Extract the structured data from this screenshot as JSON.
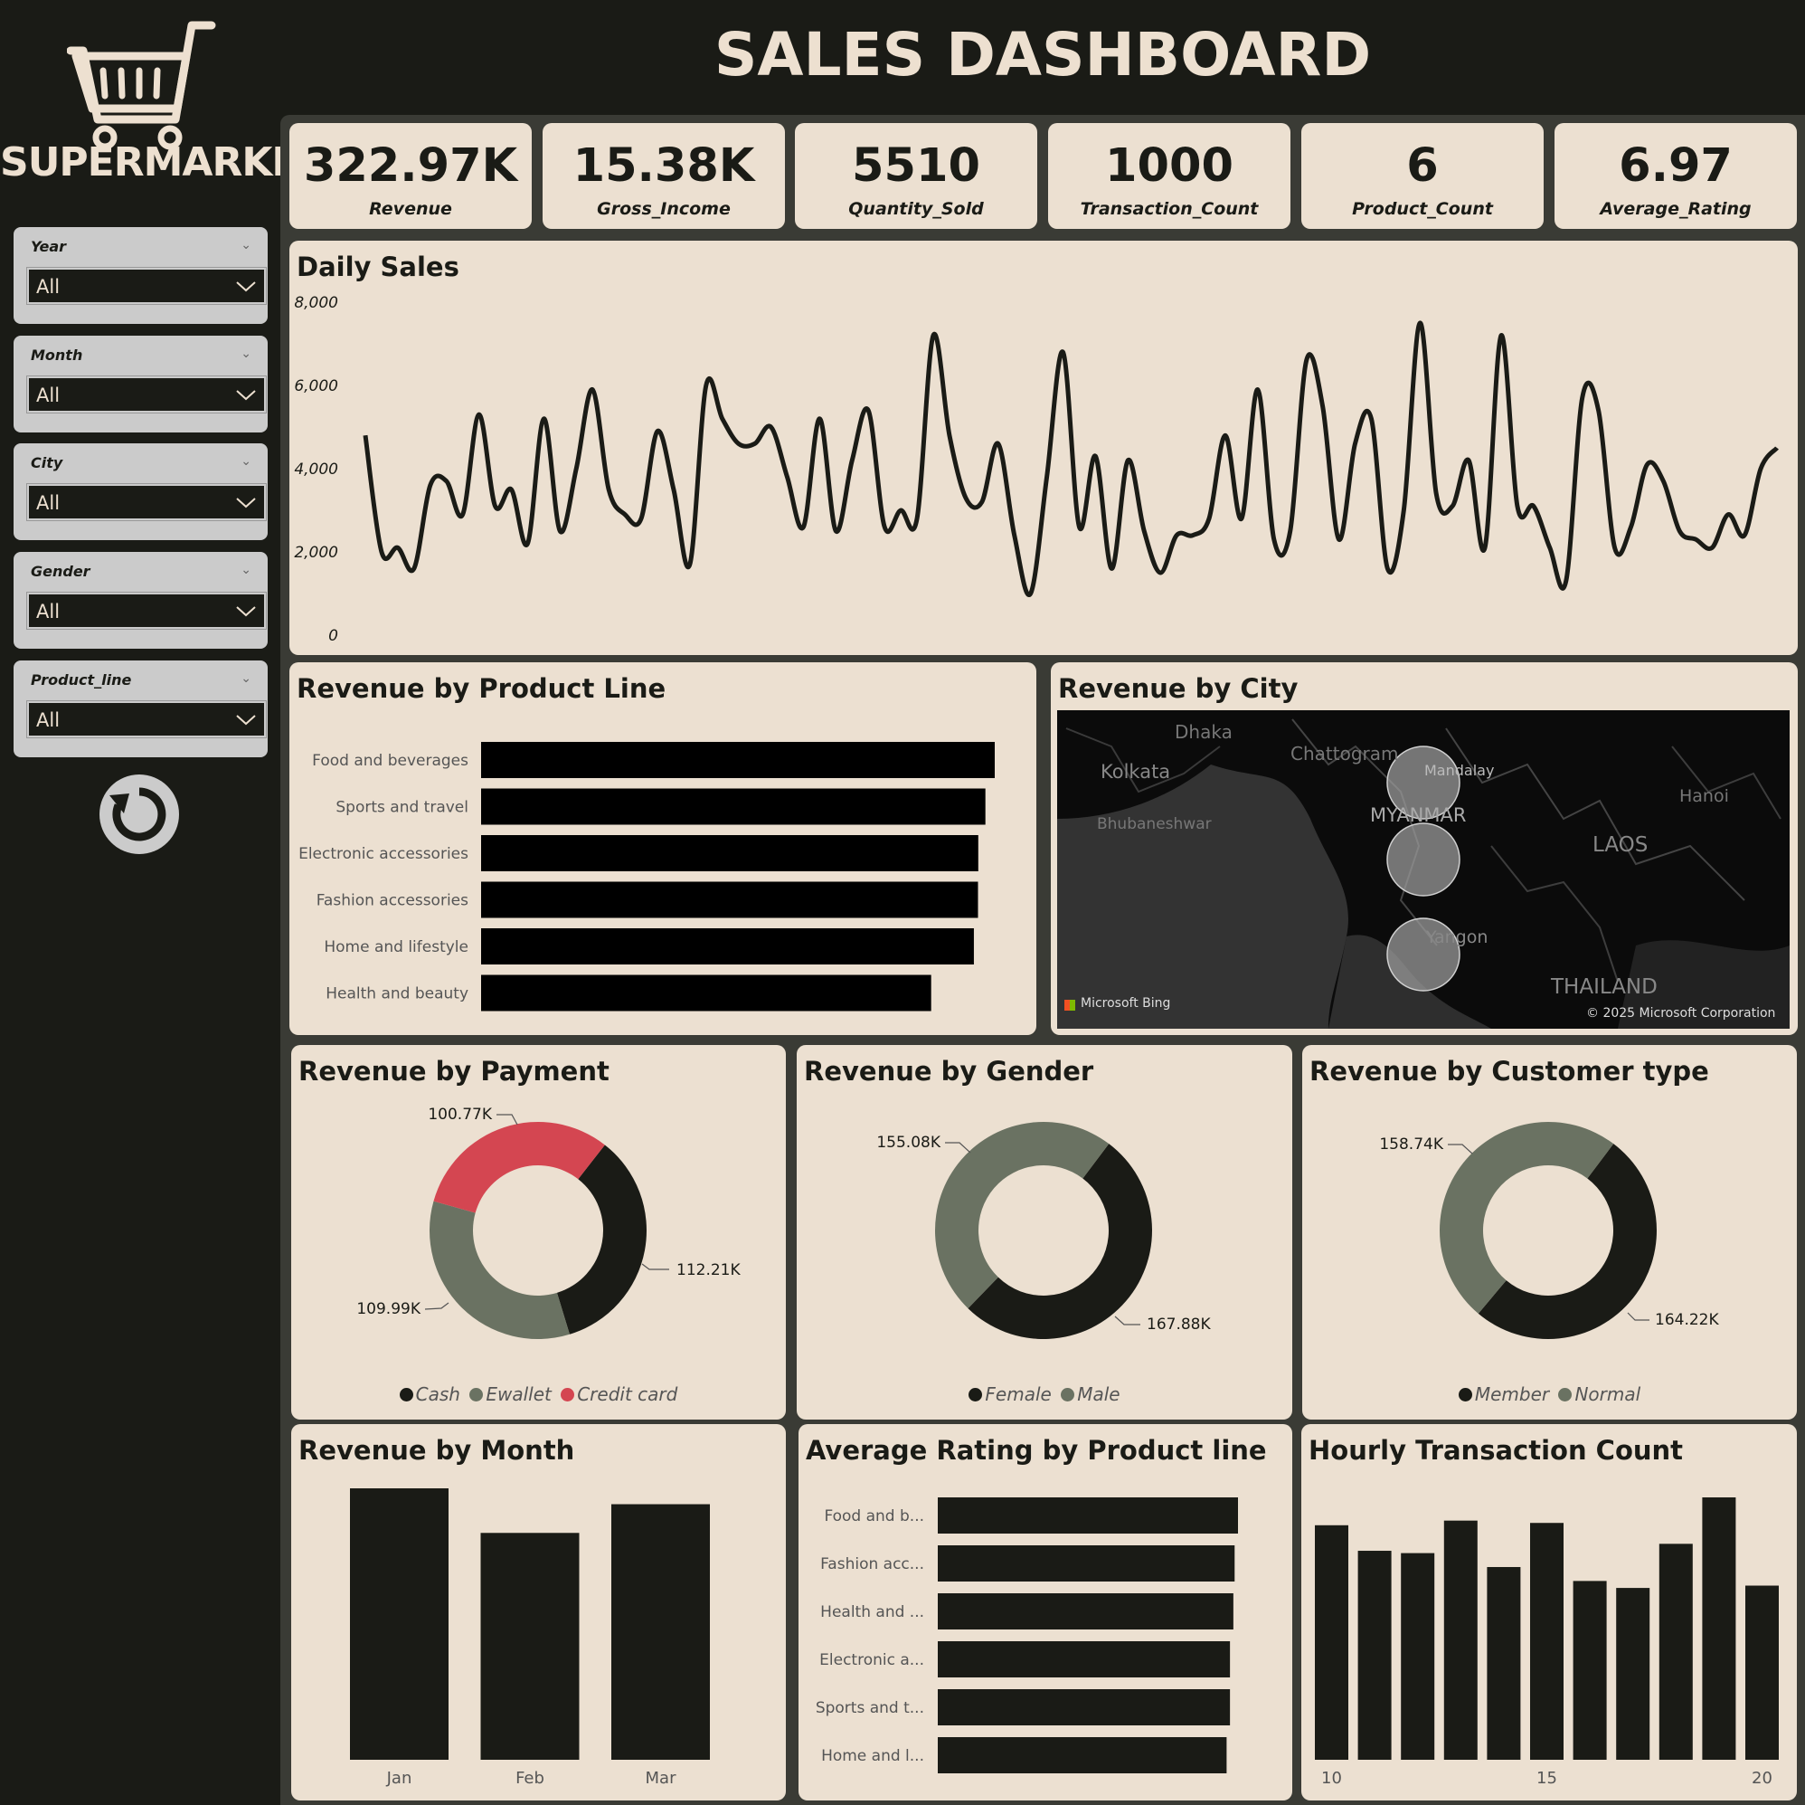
{
  "brand": "SUPERMARKET",
  "title": "SALES DASHBOARD",
  "slicers": [
    {
      "label": "Year",
      "value": "All"
    },
    {
      "label": "Month",
      "value": "All"
    },
    {
      "label": "City",
      "value": "All"
    },
    {
      "label": "Gender",
      "value": "All"
    },
    {
      "label": "Product_line",
      "value": "All"
    }
  ],
  "kpis": [
    {
      "value": "322.97K",
      "label": "Revenue"
    },
    {
      "value": "15.38K",
      "label": "Gross_Income"
    },
    {
      "value": "5510",
      "label": "Quantity_Sold"
    },
    {
      "value": "1000",
      "label": "Transaction_Count"
    },
    {
      "value": "6",
      "label": "Product_Count"
    },
    {
      "value": "6.97",
      "label": "Average_Rating"
    }
  ],
  "visuals": {
    "daily_sales": "Daily Sales",
    "product_line": "Revenue by Product Line",
    "city": "Revenue by City",
    "payment": "Revenue by Payment",
    "gender": "Revenue by Gender",
    "customer": "Revenue by Customer type",
    "month": "Revenue by Month",
    "rating": "Average Rating by Product line",
    "hourly": "Hourly Transaction Count"
  },
  "map": {
    "labels": [
      "Dhaka",
      "Kolkata",
      "Chattogram",
      "Mandalay",
      "MYANMAR",
      "Bhubaneshwar",
      "LAOS",
      "Hanoi",
      "Yangon",
      "THAILAND"
    ],
    "attribution": "Microsoft Bing",
    "copyright": "© 2025 Microsoft Corporation"
  },
  "chart_data": [
    {
      "type": "line",
      "title": "Daily Sales",
      "ylim": [
        0,
        8000
      ],
      "y_ticks": [
        "8,000",
        "6,000",
        "4,000",
        "2,000",
        "0"
      ],
      "values": [
        4800,
        2000,
        2100,
        1600,
        3600,
        3700,
        2900,
        5300,
        3100,
        3500,
        2200,
        5200,
        2500,
        4000,
        5900,
        3500,
        2900,
        2800,
        4900,
        3500,
        1700,
        6000,
        5200,
        4600,
        4600,
        5000,
        3800,
        2600,
        5200,
        2500,
        4200,
        5400,
        2600,
        3000,
        2800,
        7200,
        4800,
        3300,
        3200,
        4600,
        2400,
        1000,
        3800,
        6800,
        2600,
        4300,
        1600,
        4200,
        2500,
        1500,
        2400,
        2400,
        2800,
        4800,
        2800,
        5900,
        2300,
        2500,
        6600,
        5500,
        2300,
        4600,
        5200,
        1600,
        3000,
        7500,
        3400,
        3100,
        4200,
        2100,
        7200,
        3100,
        3100,
        2100,
        1300,
        5700,
        5400,
        2100,
        2600,
        4100,
        3700,
        2500,
        2300,
        2100,
        2900,
        2400,
        4000,
        4500
      ],
      "grid": false,
      "legend": "none"
    },
    {
      "type": "bar",
      "title": "Revenue by Product Line",
      "orientation": "horizontal",
      "categories": [
        "Food and beverages",
        "Sports and travel",
        "Electronic accessories",
        "Fashion accessories",
        "Home and lifestyle",
        "Health and beauty"
      ],
      "values": [
        56.14,
        55.12,
        54.34,
        54.31,
        53.86,
        49.19
      ],
      "color": "#000000"
    },
    {
      "type": "pie",
      "title": "Revenue by Payment",
      "categories": [
        "Cash",
        "Ewallet",
        "Credit card"
      ],
      "values": [
        112.21,
        109.99,
        100.77
      ],
      "labels": [
        "112.21K",
        "109.99K",
        "100.77K"
      ],
      "colors": [
        "#1a1b16",
        "#6a7262",
        "#d44651"
      ],
      "legend": "bottom"
    },
    {
      "type": "pie",
      "title": "Revenue by Gender",
      "categories": [
        "Female",
        "Male"
      ],
      "values": [
        167.88,
        155.08
      ],
      "labels": [
        "167.88K",
        "155.08K"
      ],
      "colors": [
        "#1a1b16",
        "#6a7262"
      ],
      "legend": "bottom"
    },
    {
      "type": "pie",
      "title": "Revenue by Customer type",
      "categories": [
        "Member",
        "Normal"
      ],
      "values": [
        164.22,
        158.74
      ],
      "labels": [
        "164.22K",
        "158.74K"
      ],
      "colors": [
        "#1a1b16",
        "#6a7262"
      ],
      "legend": "bottom"
    },
    {
      "type": "bar",
      "title": "Revenue by Month",
      "categories": [
        "Jan",
        "Feb",
        "Mar"
      ],
      "values": [
        116.3,
        97.2,
        109.5
      ],
      "color": "#1a1b16"
    },
    {
      "type": "bar",
      "title": "Average Rating by Product line",
      "orientation": "horizontal",
      "categories": [
        "Food and b...",
        "Fashion acc...",
        "Health and ...",
        "Electronic a...",
        "Sports and t...",
        "Home and l..."
      ],
      "values": [
        7.11,
        7.03,
        7.0,
        6.92,
        6.92,
        6.84
      ],
      "color": "#1a1b16"
    },
    {
      "type": "bar",
      "title": "Hourly Transaction Count",
      "x": [
        10,
        11,
        12,
        13,
        14,
        15,
        16,
        17,
        18,
        19,
        20
      ],
      "x_ticks": [
        "10",
        "15",
        "20"
      ],
      "values": [
        101,
        90,
        89,
        103,
        83,
        102,
        77,
        74,
        93,
        113,
        75
      ],
      "color": "#1a1b16"
    }
  ]
}
